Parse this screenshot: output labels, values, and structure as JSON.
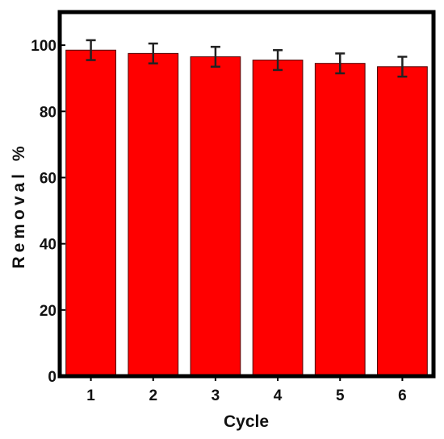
{
  "chart_data": {
    "type": "bar",
    "categories": [
      "1",
      "2",
      "3",
      "4",
      "5",
      "6"
    ],
    "values": [
      98.5,
      97.5,
      96.5,
      95.5,
      94.5,
      93.5
    ],
    "errors": [
      3,
      3,
      3,
      3,
      3,
      3
    ],
    "xlabel": "Cycle",
    "ylabel": "Removal %",
    "ylim": [
      0,
      110
    ],
    "yticks": [
      0,
      20,
      40,
      60,
      80,
      100
    ],
    "bar_color": "#ff0000",
    "error_color": "#222222",
    "grid": false,
    "legend": "none"
  }
}
